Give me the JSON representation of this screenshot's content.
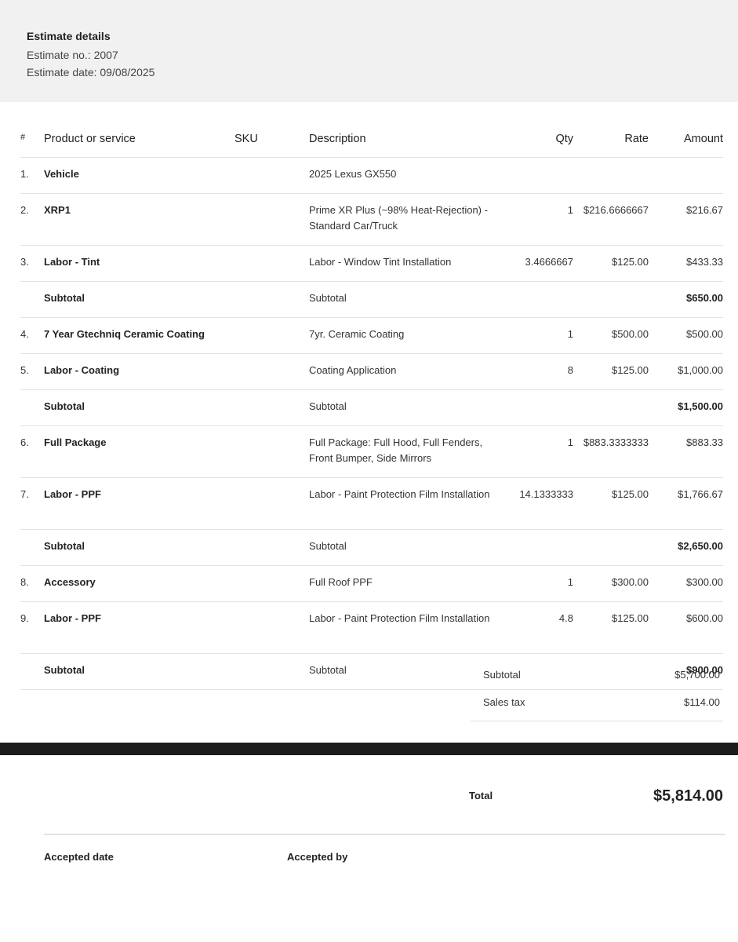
{
  "header": {
    "title": "Estimate details",
    "lines": [
      "Estimate no.: 2007",
      "Estimate date: 09/08/2025"
    ]
  },
  "table": {
    "columns": {
      "num": "#",
      "product": "Product or service",
      "sku": "SKU",
      "description": "Description",
      "qty": "Qty",
      "rate": "Rate",
      "amount": "Amount"
    },
    "rows": [
      {
        "num": "1.",
        "product": "Vehicle",
        "description": "2025 Lexus GX550"
      },
      {
        "num": "2.",
        "product": "XRP1",
        "description": "Prime XR Plus (~98% Heat-Rejection) - Standard Car/Truck",
        "qty": "1",
        "rate": "$216.6666667",
        "amount": "$216.67"
      },
      {
        "num": "3.",
        "product": "Labor - Tint",
        "description": "Labor - Window Tint Installation",
        "qty": "3.4666667",
        "rate": "$125.00",
        "amount": "$433.33"
      },
      {
        "product": "Subtotal",
        "description": "Subtotal",
        "amount": "$650.00"
      },
      {
        "num": "4.",
        "product": "7 Year Gtechniq Ceramic Coating",
        "description": "7yr. Ceramic Coating",
        "qty": "1",
        "rate": "$500.00",
        "amount": "$500.00"
      },
      {
        "num": "5.",
        "product": "Labor - Coating",
        "description": "Coating Application",
        "qty": "8",
        "rate": "$125.00",
        "amount": "$1,000.00"
      },
      {
        "product": "Subtotal",
        "description": "Subtotal",
        "amount": "$1,500.00"
      },
      {
        "num": "6.",
        "product": "Full Package",
        "description": "Full Package: Full Hood, Full Fenders, Front Bumper, Side Mirrors",
        "qty": "1",
        "rate": "$883.3333333",
        "amount": "$883.33"
      },
      {
        "num": "7.",
        "product": "Labor - PPF",
        "description": "Labor - Paint Protection Film Installation",
        "qty": "14.1333333",
        "rate": "$125.00",
        "amount": "$1,766.67"
      },
      {
        "product": "Subtotal",
        "description": "Subtotal",
        "amount": "$2,650.00"
      },
      {
        "num": "8.",
        "product": "Accessory",
        "description": "Full Roof PPF",
        "qty": "1",
        "rate": "$300.00",
        "amount": "$300.00"
      },
      {
        "num": "9.",
        "product": "Labor - PPF",
        "description": "Labor - Paint Protection Film Installation",
        "qty": "4.8",
        "rate": "$125.00",
        "amount": "$600.00"
      },
      {
        "product": "Subtotal",
        "description": "Subtotal",
        "amount": "$900.00"
      }
    ]
  },
  "summary": [
    {
      "label": "Subtotal",
      "value": "$5,700.00"
    },
    {
      "label": "Sales tax",
      "value": "$114.00"
    }
  ],
  "total": {
    "label": "Total",
    "value": "$5,814.00"
  },
  "acceptance": [
    "Accepted date",
    "Accepted by"
  ]
}
